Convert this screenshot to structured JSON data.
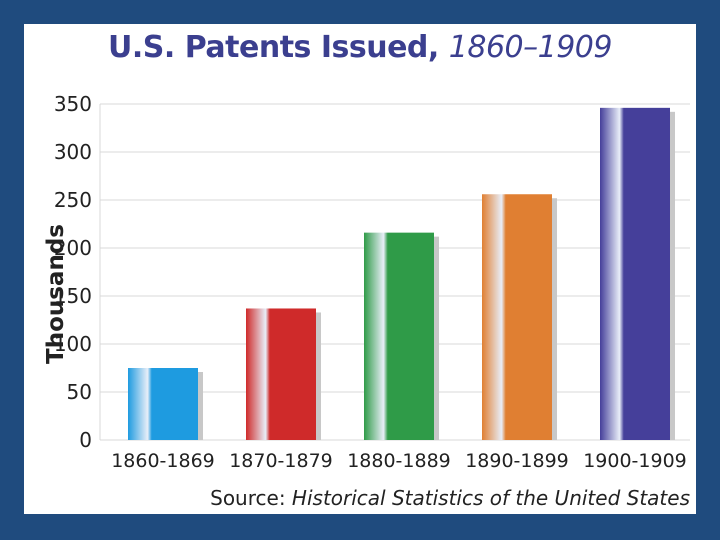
{
  "title_main": "U.S. Patents Issued,",
  "title_years": "1860–1909",
  "source_prefix": "Source: ",
  "source_title": "Historical Statistics of the United States",
  "colors": {
    "frame": "#1f4b7e",
    "title": "#3b3f8f",
    "bars": [
      "#1e9be0",
      "#cf2a2a",
      "#2f9b48",
      "#e07f32",
      "#453f9a"
    ]
  },
  "chart_data": {
    "type": "bar",
    "title": "U.S. Patents Issued, 1860–1909",
    "xlabel": "",
    "ylabel": "Thousands",
    "categories": [
      "1860-1869",
      "1870-1879",
      "1880-1889",
      "1890-1899",
      "1900-1909"
    ],
    "values": [
      75,
      137,
      216,
      256,
      346
    ],
    "ylim": [
      0,
      350
    ],
    "yticks": [
      0,
      50,
      100,
      150,
      200,
      250,
      300,
      350
    ],
    "grid": true,
    "legend": "none"
  }
}
